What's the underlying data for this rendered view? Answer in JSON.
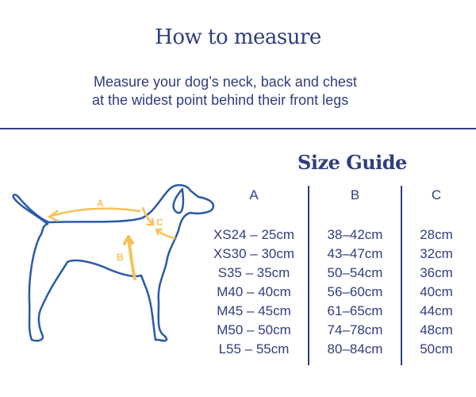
{
  "header": {
    "title": "How to measure",
    "subtitle_lines": [
      "Measure your dog’s neck, back and chest",
      "at the widest point behind their front legs"
    ]
  },
  "size_guide": {
    "title": "Size Guide",
    "columns": [
      "A",
      "B",
      "C"
    ],
    "rows": [
      [
        "XS24 – 25cm",
        "38–42cm",
        "28cm"
      ],
      [
        "XS30 – 30cm",
        "43–47cm",
        "32cm"
      ],
      [
        "S35 – 35cm",
        "50–54cm",
        "36cm"
      ],
      [
        "M40 – 40cm",
        "56–60cm",
        "40cm"
      ],
      [
        "M45 – 45cm",
        "61–65cm",
        "44cm"
      ],
      [
        "M50 – 50cm",
        "74–78cm",
        "48cm"
      ],
      [
        "L55 – 55cm",
        "80–84cm",
        "50cm"
      ]
    ]
  },
  "diagram": {
    "labels": {
      "back": "A",
      "chest": "B",
      "neck": "C"
    },
    "colors": {
      "outline": "#2a5aa8",
      "arrows": "#f5c15a",
      "text": "#2f3e7d"
    }
  }
}
